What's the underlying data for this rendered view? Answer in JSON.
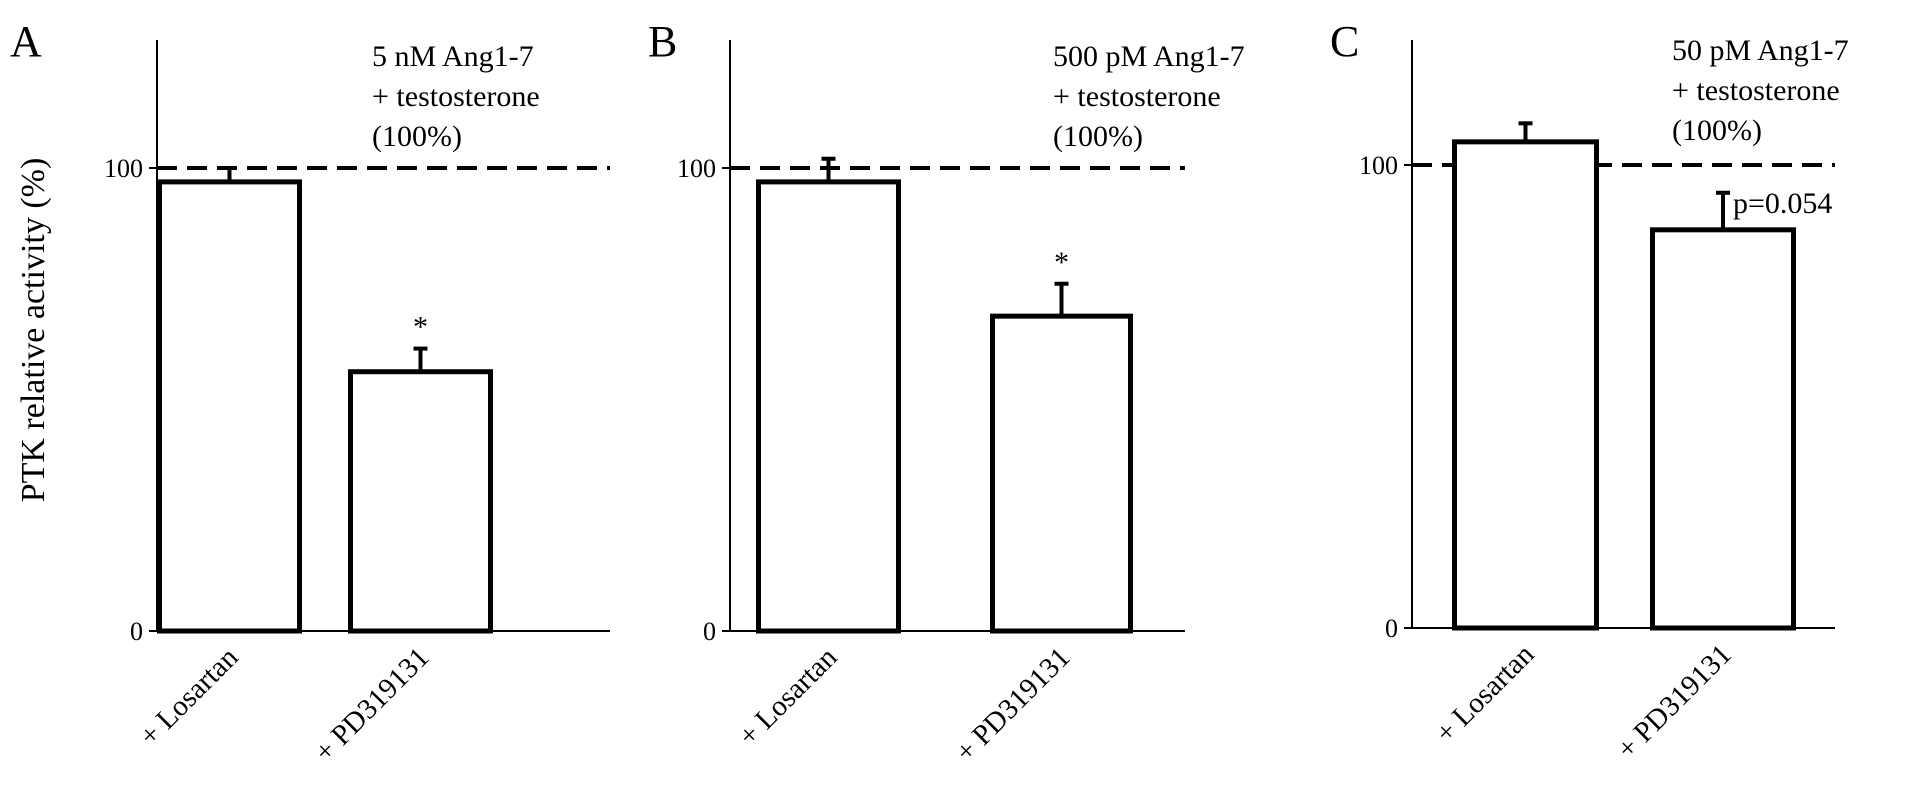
{
  "ylabel": "PTK relative activity (%)",
  "chart_data": [
    {
      "type": "bar",
      "panel": "A",
      "annotation_lines": [
        "5 nM Ang1-7",
        "+ testosterone",
        "(100%)"
      ],
      "categories": [
        "+ Losartan",
        "+ PD319131"
      ],
      "values": [
        97,
        56
      ],
      "errors": [
        3,
        5
      ],
      "significance": [
        "",
        "*"
      ],
      "reference_line": 100,
      "yticks": [
        0,
        100
      ],
      "ylim": [
        0,
        128
      ],
      "ylabel": "PTK relative activity (%)"
    },
    {
      "type": "bar",
      "panel": "B",
      "annotation_lines": [
        "500 pM Ang1-7",
        "+ testosterone",
        "(100%)"
      ],
      "categories": [
        "+ Losartan",
        "+ PD319131"
      ],
      "values": [
        97,
        68
      ],
      "errors": [
        5,
        7
      ],
      "significance": [
        "",
        "*"
      ],
      "reference_line": 100,
      "yticks": [
        0,
        100
      ],
      "ylim": [
        0,
        128
      ]
    },
    {
      "type": "bar",
      "panel": "C",
      "annotation_lines": [
        "50 pM Ang1-7",
        "+ testosterone",
        "(100%)"
      ],
      "categories": [
        "+ Losartan",
        "+ PD319131"
      ],
      "values": [
        105,
        86
      ],
      "errors": [
        4,
        8
      ],
      "significance": [
        "",
        "p=0.054"
      ],
      "reference_line": 100,
      "yticks": [
        0,
        100
      ],
      "ylim": [
        0,
        128
      ]
    }
  ]
}
